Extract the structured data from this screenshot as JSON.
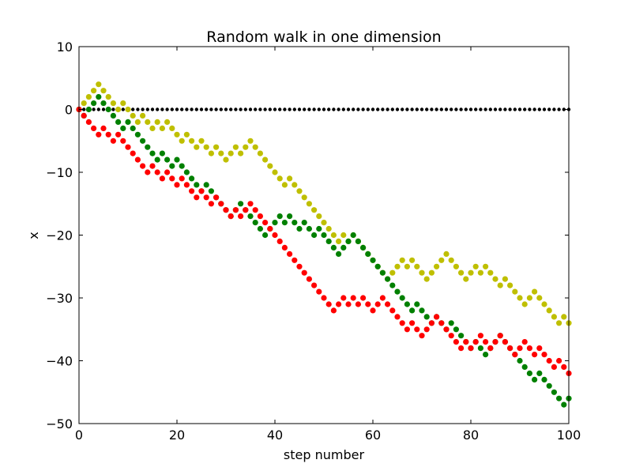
{
  "chart_data": {
    "type": "scatter",
    "title": "Random walk in one dimension",
    "xlabel": "step number",
    "ylabel": "x",
    "xlim": [
      0,
      100
    ],
    "ylim": [
      -50,
      10
    ],
    "xticks": [
      "0",
      "20",
      "40",
      "60",
      "80",
      "100"
    ],
    "yticks": [
      "10",
      "0",
      "−10",
      "−20",
      "−30",
      "−40",
      "−50"
    ],
    "grid": false,
    "legend": false,
    "series": [
      {
        "color": "#000000",
        "values": [
          0,
          0,
          0,
          0,
          0,
          0,
          0,
          0,
          0,
          0,
          0,
          0,
          0,
          0,
          0,
          0,
          0,
          0,
          0,
          0,
          0,
          0,
          0,
          0,
          0,
          0,
          0,
          0,
          0,
          0,
          0,
          0,
          0,
          0,
          0,
          0,
          0,
          0,
          0,
          0,
          0,
          0,
          0,
          0,
          0,
          0,
          0,
          0,
          0,
          0,
          0,
          0,
          0,
          0,
          0,
          0,
          0,
          0,
          0,
          0,
          0,
          0,
          0,
          0,
          0,
          0,
          0,
          0,
          0,
          0,
          0,
          0,
          0,
          0,
          0,
          0,
          0,
          0,
          0,
          0,
          0,
          0,
          0,
          0,
          0,
          0,
          0,
          0,
          0,
          0,
          0,
          0,
          0,
          0,
          0,
          0,
          0,
          0,
          0,
          0,
          0
        ]
      },
      {
        "color": "#bfbf00",
        "values": [
          0,
          1,
          2,
          3,
          4,
          3,
          2,
          1,
          0,
          1,
          0,
          -1,
          -2,
          -1,
          -2,
          -3,
          -2,
          -3,
          -2,
          -3,
          -4,
          -5,
          -4,
          -5,
          -6,
          -5,
          -6,
          -7,
          -6,
          -7,
          -8,
          -7,
          -6,
          -7,
          -6,
          -5,
          -6,
          -7,
          -8,
          -9,
          -10,
          -11,
          -12,
          -11,
          -12,
          -13,
          -14,
          -15,
          -16,
          -17,
          -18,
          -19,
          -20,
          -21,
          -20,
          -21,
          -20,
          -21,
          -22,
          -23,
          -24,
          -25,
          -26,
          -27,
          -26,
          -25,
          -24,
          -25,
          -24,
          -25,
          -26,
          -27,
          -26,
          -25,
          -24,
          -23,
          -24,
          -25,
          -26,
          -27,
          -26,
          -25,
          -26,
          -25,
          -26,
          -27,
          -28,
          -27,
          -28,
          -29,
          -30,
          -31,
          -30,
          -29,
          -30,
          -31,
          -32,
          -33,
          -34,
          -33,
          -34
        ]
      },
      {
        "color": "#008000",
        "values": [
          0,
          -1,
          0,
          1,
          2,
          1,
          0,
          -1,
          -2,
          -3,
          -2,
          -3,
          -4,
          -5,
          -6,
          -7,
          -8,
          -7,
          -8,
          -9,
          -8,
          -9,
          -10,
          -11,
          -12,
          -13,
          -12,
          -13,
          -14,
          -15,
          -16,
          -17,
          -16,
          -15,
          -16,
          -17,
          -18,
          -19,
          -20,
          -19,
          -18,
          -17,
          -18,
          -17,
          -18,
          -19,
          -18,
          -19,
          -20,
          -19,
          -20,
          -21,
          -22,
          -23,
          -22,
          -21,
          -20,
          -21,
          -22,
          -23,
          -24,
          -25,
          -26,
          -27,
          -28,
          -29,
          -30,
          -31,
          -32,
          -31,
          -32,
          -33,
          -34,
          -33,
          -34,
          -35,
          -34,
          -35,
          -36,
          -37,
          -38,
          -37,
          -38,
          -39,
          -38,
          -37,
          -36,
          -37,
          -38,
          -39,
          -40,
          -41,
          -42,
          -43,
          -42,
          -43,
          -44,
          -45,
          -46,
          -47,
          -46
        ]
      },
      {
        "color": "#ff0000",
        "values": [
          0,
          -1,
          -2,
          -3,
          -4,
          -3,
          -4,
          -5,
          -4,
          -5,
          -6,
          -7,
          -8,
          -9,
          -10,
          -9,
          -10,
          -11,
          -10,
          -11,
          -12,
          -11,
          -12,
          -13,
          -14,
          -13,
          -14,
          -15,
          -14,
          -15,
          -16,
          -17,
          -16,
          -17,
          -16,
          -15,
          -16,
          -17,
          -18,
          -19,
          -20,
          -21,
          -22,
          -23,
          -24,
          -25,
          -26,
          -27,
          -28,
          -29,
          -30,
          -31,
          -32,
          -31,
          -30,
          -31,
          -30,
          -31,
          -30,
          -31,
          -32,
          -31,
          -30,
          -31,
          -32,
          -33,
          -34,
          -35,
          -34,
          -35,
          -36,
          -35,
          -34,
          -33,
          -34,
          -35,
          -36,
          -37,
          -38,
          -37,
          -38,
          -37,
          -36,
          -37,
          -38,
          -37,
          -36,
          -37,
          -38,
          -39,
          -38,
          -37,
          -38,
          -39,
          -38,
          -39,
          -40,
          -41,
          -40,
          -41,
          -42
        ]
      }
    ]
  }
}
